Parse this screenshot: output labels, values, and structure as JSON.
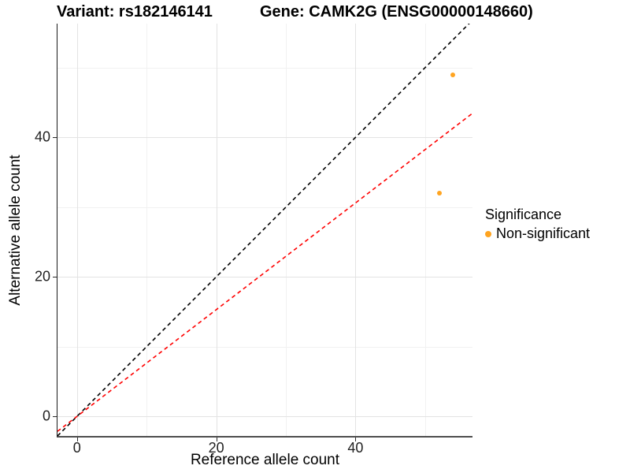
{
  "chart_data": {
    "type": "scatter",
    "title_left": "Variant: rs182146141",
    "title_right": "Gene: CAMK2G (ENSG00000148660)",
    "xlabel": "Reference allele count",
    "ylabel": "Alternative allele count",
    "xlim": [
      -2.8,
      56.8
    ],
    "ylim": [
      -2.8,
      56.3
    ],
    "x_major_ticks": [
      0,
      20,
      40
    ],
    "x_minor_ticks": [
      10,
      30,
      50
    ],
    "y_major_ticks": [
      0,
      20,
      40
    ],
    "y_minor_ticks": [
      10,
      30,
      50
    ],
    "tick_labels": {
      "x": [
        "0",
        "20",
        "40"
      ],
      "y": [
        "0",
        "20",
        "40"
      ]
    },
    "grid": "on",
    "legend_position": "right",
    "series": [
      {
        "name": "Non-significant",
        "color": "#FFA420",
        "points": [
          {
            "x": 54,
            "y": 49
          },
          {
            "x": 52,
            "y": 32
          }
        ]
      }
    ],
    "reference_lines": [
      {
        "name": "identity-line",
        "slope": 1,
        "intercept": 0,
        "color": "#000000",
        "style": "dashed"
      },
      {
        "name": "expected-ratio-line",
        "slope": 0.765,
        "intercept": 0,
        "color": "#FF0000",
        "style": "dashed"
      }
    ],
    "legend": {
      "title": "Significance",
      "items": [
        {
          "label": "Non-significant",
          "color": "#FFA420"
        }
      ]
    }
  },
  "colors": {
    "grid_major": "#E3E3E3",
    "grid_minor": "#F1F1F1",
    "axis_line": "#2B2B2B",
    "point_orange": "#FFA420",
    "line_red": "#FF0000",
    "line_black": "#000000"
  }
}
